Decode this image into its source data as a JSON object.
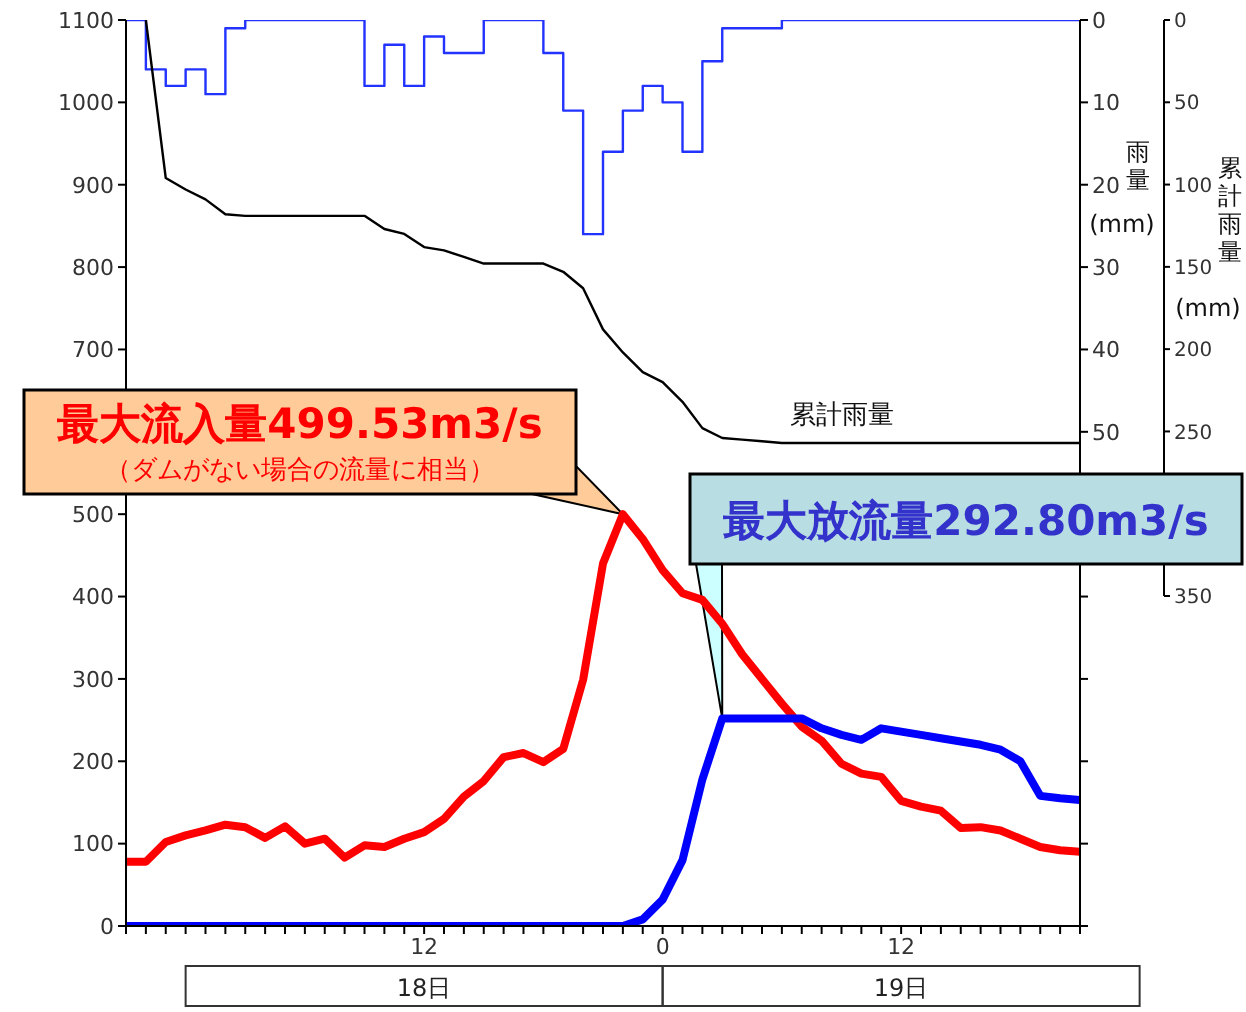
{
  "chart_data": {
    "type": "line",
    "y2label": "雨量(mm)",
    "y3label": "累計雨量(mm)",
    "categories": [
      null,
      null,
      null,
      null,
      null,
      null,
      null,
      null,
      null,
      null,
      null,
      null,
      null,
      null,
      null,
      "12",
      null,
      null,
      null,
      null,
      null,
      null,
      null,
      null,
      null,
      null,
      null,
      "0",
      null,
      null,
      null,
      null,
      null,
      null,
      null,
      null,
      null,
      null,
      null,
      "12",
      null,
      null,
      null,
      null,
      null,
      null,
      null,
      null,
      null
    ],
    "ylim": [
      0,
      1100
    ],
    "yticks": [
      0,
      100,
      200,
      300,
      400,
      500,
      {
        "value": 600,
        "label": null
      },
      700,
      800,
      900,
      1000,
      1100
    ],
    "y2lim": [
      110,
      0
    ],
    "y2ticks": [
      0,
      10,
      20,
      30,
      40,
      50,
      {
        "value": 60,
        "label": null
      },
      {
        "value": 70,
        "label": null
      },
      {
        "value": 80,
        "label": null
      },
      {
        "value": 90,
        "label": null
      },
      {
        "value": 100,
        "label": null
      },
      {
        "value": 110,
        "label": null
      }
    ],
    "y3lim": [
      350,
      0
    ],
    "y3ticks": [
      0,
      50,
      100,
      150,
      200,
      250,
      350
    ],
    "series": [
      {
        "type": "step",
        "axis": "y2",
        "color": "#2233ff",
        "values": [
          0,
          6,
          8,
          6,
          9,
          1,
          0,
          0,
          0,
          0,
          0,
          0,
          8,
          3,
          8,
          2,
          4,
          4,
          0,
          0,
          0,
          4,
          11,
          26,
          16,
          11,
          8,
          10,
          16,
          5,
          1,
          1,
          1,
          0,
          0,
          0,
          0,
          0,
          0,
          0,
          0,
          0,
          0,
          0,
          0,
          0,
          0,
          0,
          0
        ]
      },
      {
        "name": "累計雨量",
        "axis": "y3",
        "color": "#000000",
        "values": [
          null,
          0,
          96,
          103,
          109,
          118,
          119,
          119,
          119,
          119,
          119,
          119,
          119,
          127,
          130,
          138,
          140,
          144,
          148,
          148,
          148,
          148,
          153,
          163,
          188,
          202,
          214,
          220,
          232,
          248,
          254,
          255,
          256,
          257,
          257,
          257,
          257,
          257,
          257,
          257,
          257,
          257,
          257,
          257,
          257,
          257,
          257,
          257,
          257
        ]
      },
      {
        "color": "#ff0000",
        "values": [
          78,
          78,
          102,
          110,
          116,
          123,
          120,
          107,
          121,
          100,
          106,
          83,
          98,
          96,
          106,
          114,
          130,
          157,
          176,
          205,
          210,
          199,
          215,
          299,
          440,
          500,
          470,
          432,
          404,
          396,
          367,
          330,
          300,
          270,
          242,
          225,
          197,
          185,
          181,
          152,
          145,
          140,
          119,
          120,
          116,
          106,
          96,
          92,
          90
        ]
      },
      {
        "color": "#0000ff",
        "values": [
          0,
          0,
          0,
          0,
          0,
          0,
          0,
          0,
          0,
          0,
          0,
          0,
          0,
          0,
          0,
          0,
          0,
          0,
          0,
          0,
          0,
          0,
          0,
          0,
          0,
          0,
          8,
          32,
          80,
          178,
          252,
          252,
          252,
          252,
          252,
          240,
          232,
          226,
          240,
          236,
          232,
          228,
          224,
          220,
          214,
          200,
          158,
          155,
          153
        ]
      }
    ],
    "annotations": [
      "最大流入量499.53m3/s",
      "（ダムがない場合の流量に相当）",
      "最大放流量292.80m3/s",
      "18日",
      "19日"
    ]
  }
}
